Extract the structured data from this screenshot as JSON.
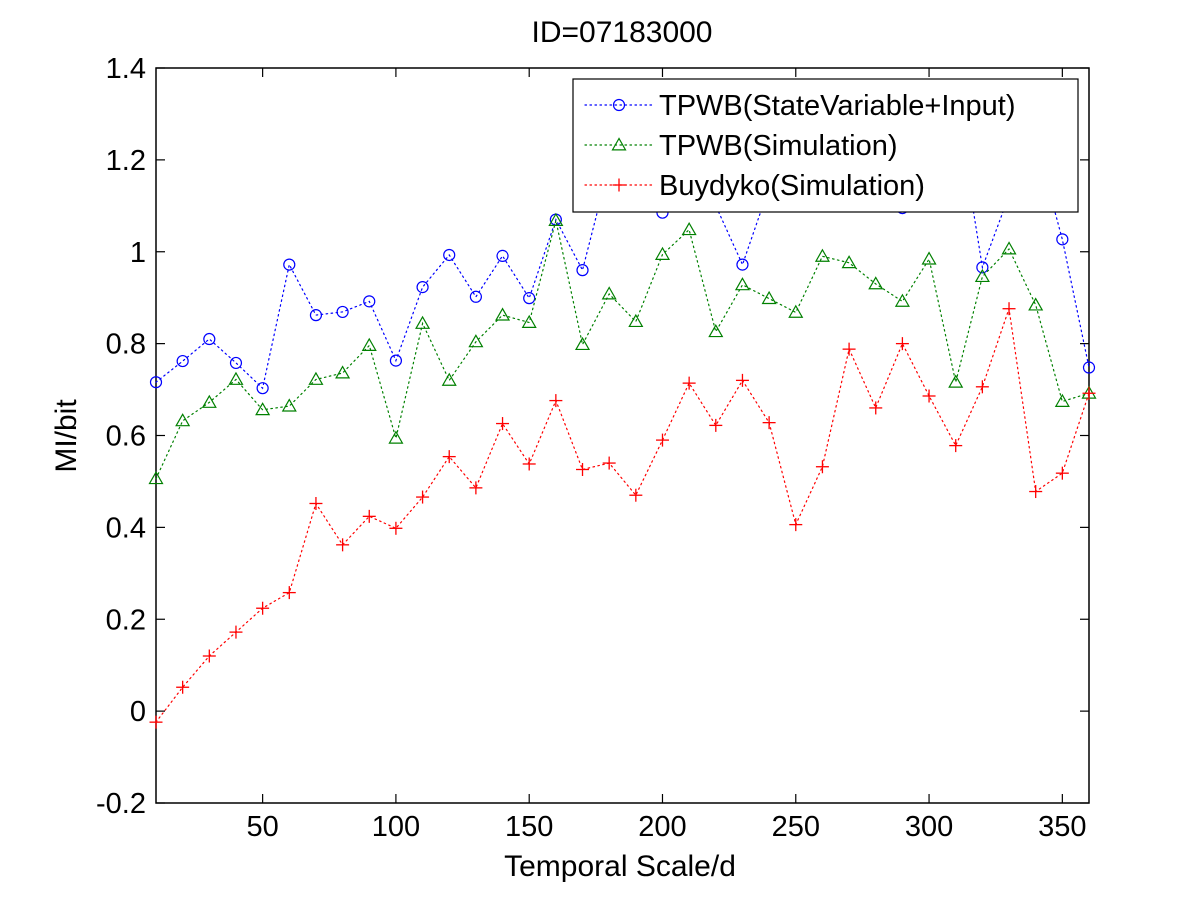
{
  "chart_data": {
    "type": "line",
    "title": "ID=07183000",
    "xlabel": "Temporal Scale/d",
    "ylabel": "MI/bit",
    "xlim": [
      10,
      360
    ],
    "ylim": [
      -0.2,
      1.4
    ],
    "xticks": [
      50,
      100,
      150,
      200,
      250,
      300,
      350
    ],
    "yticks": [
      -0.2,
      0,
      0.2,
      0.4,
      0.6,
      0.8,
      1,
      1.2,
      1.4
    ],
    "xtick_labels": [
      "50",
      "100",
      "150",
      "200",
      "250",
      "300",
      "350"
    ],
    "ytick_labels": [
      "-0.2",
      "0",
      "0.2",
      "0.4",
      "0.6",
      "0.8",
      "1",
      "1.2",
      "1.4"
    ],
    "grid": false,
    "legend_position": "top-right",
    "x": [
      10,
      20,
      30,
      40,
      50,
      60,
      70,
      80,
      90,
      100,
      110,
      120,
      130,
      140,
      150,
      160,
      170,
      180,
      190,
      200,
      210,
      220,
      230,
      240,
      250,
      260,
      270,
      280,
      290,
      300,
      310,
      320,
      330,
      340,
      350,
      360
    ],
    "series": [
      {
        "name": "TPWB(StateVariable+Input)",
        "color": "#0000ff",
        "marker": "circle",
        "values": [
          0.716,
          0.762,
          0.81,
          0.758,
          0.703,
          0.972,
          0.862,
          0.869,
          0.892,
          0.763,
          0.923,
          0.993,
          0.902,
          0.991,
          0.899,
          1.07,
          0.96,
          1.188,
          1.135,
          1.085,
          1.286,
          1.1,
          0.972,
          1.14,
          1.14,
          1.188,
          1.13,
          1.18,
          1.095,
          1.176,
          1.33,
          0.966,
          1.122,
          1.243,
          1.027,
          0.748
        ]
      },
      {
        "name": "TPWB(Simulation)",
        "color": "#008000",
        "marker": "triangle",
        "values": [
          0.506,
          0.632,
          0.672,
          0.722,
          0.656,
          0.664,
          0.722,
          0.736,
          0.796,
          0.594,
          0.844,
          0.72,
          0.804,
          0.862,
          0.846,
          1.068,
          0.798,
          0.908,
          0.848,
          0.994,
          1.048,
          0.826,
          0.928,
          0.898,
          0.868,
          0.99,
          0.976,
          0.93,
          0.892,
          0.984,
          0.716,
          0.946,
          1.006,
          0.884,
          0.674,
          0.692
        ]
      },
      {
        "name": "Buydyko(Simulation)",
        "color": "#ff0000",
        "marker": "plus",
        "values": [
          -0.024,
          0.052,
          0.12,
          0.172,
          0.224,
          0.258,
          0.452,
          0.362,
          0.424,
          0.398,
          0.466,
          0.554,
          0.486,
          0.626,
          0.538,
          0.676,
          0.526,
          0.54,
          0.47,
          0.59,
          0.714,
          0.622,
          0.72,
          0.628,
          0.406,
          0.532,
          0.788,
          0.66,
          0.8,
          0.686,
          0.578,
          0.706,
          0.876,
          0.478,
          0.518,
          0.692
        ]
      }
    ]
  }
}
